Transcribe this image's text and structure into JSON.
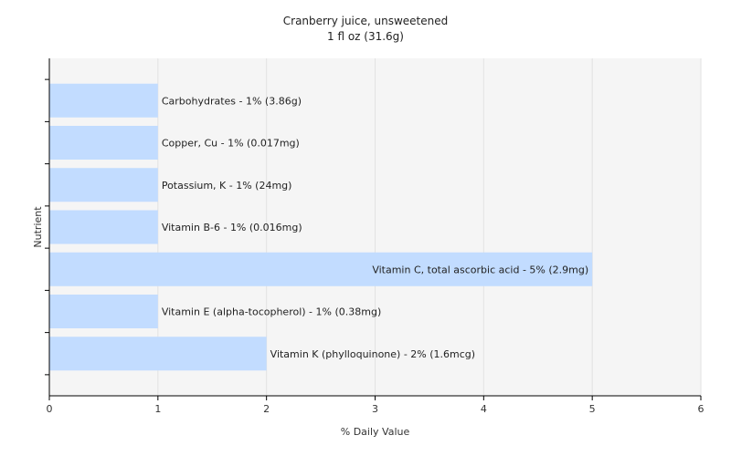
{
  "chart_data": {
    "type": "bar",
    "orientation": "horizontal",
    "title": "Cranberry juice, unsweetened",
    "subtitle": "1 fl oz (31.6g)",
    "xlabel": "% Daily Value",
    "ylabel": "Nutrient",
    "xlim": [
      0,
      6
    ],
    "xticks": [
      0,
      1,
      2,
      3,
      4,
      5,
      6
    ],
    "grid": true,
    "bar_color": "#c2dcff",
    "background_color": "#f5f5f5",
    "categories": [
      "Carbohydrates",
      "Copper, Cu",
      "Potassium, K",
      "Vitamin B-6",
      "Vitamin C, total ascorbic acid",
      "Vitamin E (alpha-tocopherol)",
      "Vitamin K (phylloquinone)"
    ],
    "values": [
      1,
      1,
      1,
      1,
      5,
      1,
      2
    ],
    "bar_labels": [
      "Carbohydrates - 1% (3.86g)",
      "Copper, Cu - 1% (0.017mg)",
      "Potassium, K - 1% (24mg)",
      "Vitamin B-6 - 1% (0.016mg)",
      "Vitamin C, total ascorbic acid - 5% (2.9mg)",
      "Vitamin E (alpha-tocopherol) - 1% (0.38mg)",
      "Vitamin K (phylloquinone) - 2% (1.6mcg)"
    ]
  }
}
